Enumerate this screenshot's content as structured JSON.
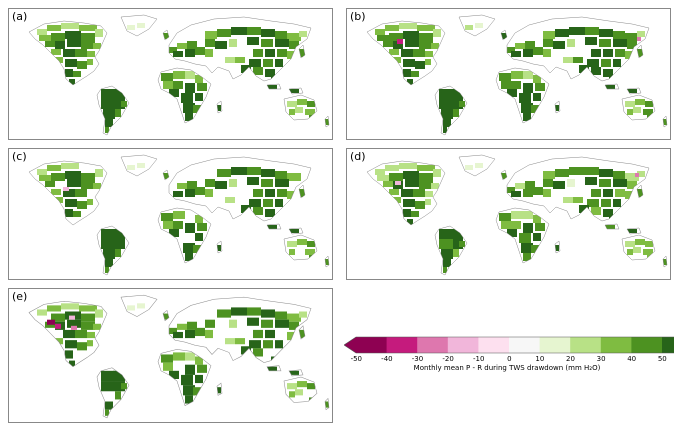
{
  "panels": [
    {
      "label": "(a)",
      "variant": 0
    },
    {
      "label": "(b)",
      "variant": 1
    },
    {
      "label": "(c)",
      "variant": 2
    },
    {
      "label": "(d)",
      "variant": 3
    },
    {
      "label": "(e)",
      "variant": 4
    }
  ],
  "colorbar": {
    "ticks": [
      "-50",
      "-40",
      "-30",
      "-20",
      "-10",
      "0",
      "10",
      "20",
      "30",
      "40",
      "50"
    ],
    "label": "Monthly mean P - R during TWS drawdown (mm H₂O)",
    "colors": [
      "#8e0152",
      "#c51b7d",
      "#de77ae",
      "#f1b6da",
      "#fde0ef",
      "#f7f7f7",
      "#e6f5d0",
      "#b8e186",
      "#7fbc41",
      "#4d9221",
      "#276419"
    ]
  }
}
